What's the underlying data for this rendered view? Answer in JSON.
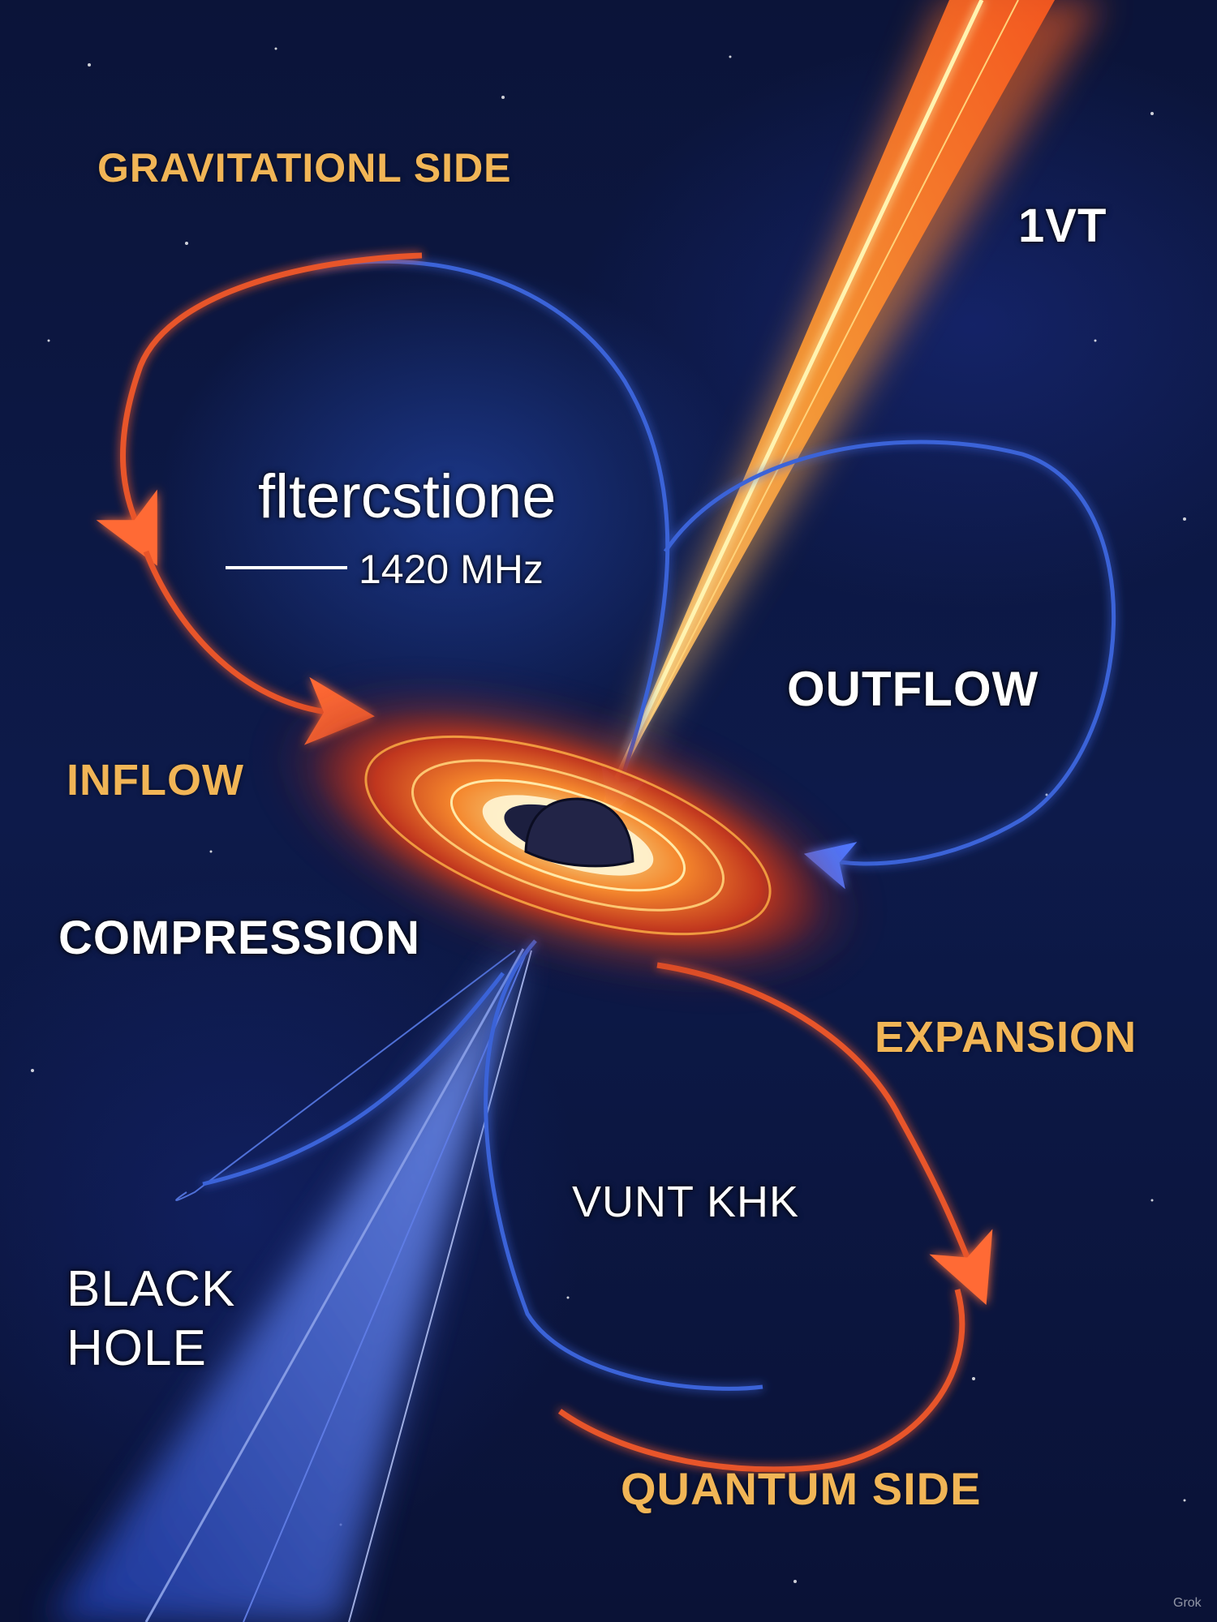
{
  "labels": {
    "gravitational_side": "GRAVITATIONL SIDE",
    "top_right": "1VT",
    "center_title": "fltercstione",
    "frequency": "1420 MHz",
    "outflow": "OUTFLOW",
    "inflow": "INFLOW",
    "compression": "COMPRESSION",
    "expansion": "EXPANSION",
    "middle_lower": "VUNT KHK",
    "black_hole": "BLACK\nHOLE",
    "quantum_side": "QUANTUM SIDE"
  },
  "watermark": "Grok",
  "colors": {
    "background": "#0a1236",
    "label_gold": "#f1b556",
    "label_white": "#ffffff",
    "red_flow": "#e8552b",
    "blue_flow": "#3a63d8",
    "jet_core": "#ffd27a"
  }
}
